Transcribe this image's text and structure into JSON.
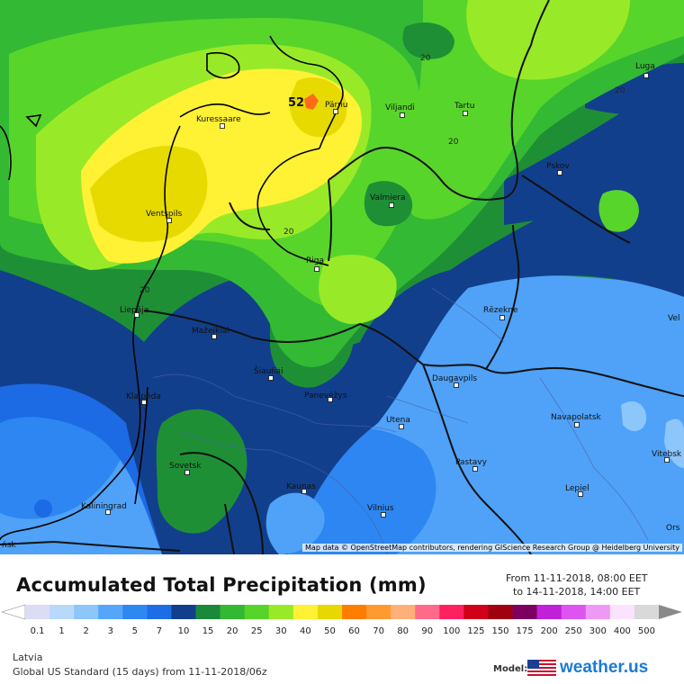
{
  "map": {
    "attribution": "Map data © OpenStreetMap contributors, rendering GIScience Research Group @ Heidelberg University",
    "peak_value": "52",
    "contour_label": "20",
    "cities": [
      {
        "id": "kuressaare",
        "name": "Kuressaare"
      },
      {
        "id": "parnu",
        "name": "Pärnu"
      },
      {
        "id": "viljandi",
        "name": "Viljandi"
      },
      {
        "id": "tartu",
        "name": "Tartu"
      },
      {
        "id": "luga",
        "name": "Luga"
      },
      {
        "id": "pskov",
        "name": "Pskov"
      },
      {
        "id": "valmiera",
        "name": "Valmiera"
      },
      {
        "id": "ventspils",
        "name": "Ventspils"
      },
      {
        "id": "riga",
        "name": "Riga"
      },
      {
        "id": "liepaja",
        "name": "Liepāja"
      },
      {
        "id": "rezekne",
        "name": "Rēzekne"
      },
      {
        "id": "mazeikiai",
        "name": "Mažeikiai"
      },
      {
        "id": "siauliai",
        "name": "Šiauliai"
      },
      {
        "id": "panevezys",
        "name": "Panevėžys"
      },
      {
        "id": "daugavpils",
        "name": "Daugavpils"
      },
      {
        "id": "klaipeda",
        "name": "Klaipėda"
      },
      {
        "id": "utena",
        "name": "Utena"
      },
      {
        "id": "navapolatsk",
        "name": "Navapolatsk"
      },
      {
        "id": "vitebsk",
        "name": "Vitebsk"
      },
      {
        "id": "sovetsk",
        "name": "Sovetsk"
      },
      {
        "id": "pastavy",
        "name": "Pastavy"
      },
      {
        "id": "kaunas",
        "name": "Kaunas"
      },
      {
        "id": "lepiel",
        "name": "Lepiel"
      },
      {
        "id": "kaliningrad",
        "name": "Kaliningrad"
      },
      {
        "id": "vilnius",
        "name": "Vilnius"
      },
      {
        "id": "orsha",
        "name": "Ors"
      },
      {
        "id": "velikie",
        "name": "Vel"
      },
      {
        "id": "west-edge",
        "name": "ńsk"
      }
    ]
  },
  "legend": {
    "title": "Accumulated Total Precipitation (mm)",
    "from": "From 11-11-2018, 08:00 EET",
    "to": "to 14-11-2018, 14:00 EET",
    "ticks": [
      "0.1",
      "1",
      "2",
      "3",
      "5",
      "7",
      "10",
      "15",
      "20",
      "25",
      "30",
      "40",
      "50",
      "60",
      "70",
      "80",
      "90",
      "100",
      "125",
      "150",
      "175",
      "200",
      "250",
      "300",
      "400",
      "500"
    ],
    "colors": [
      "#dcdcf5",
      "#b9d9fb",
      "#8cc6fb",
      "#55a6f9",
      "#2f88f2",
      "#1d6ee6",
      "#123f8c",
      "#1a8a3a",
      "#33b833",
      "#57d42a",
      "#98ea28",
      "#fff134",
      "#e6d800",
      "#ff7d00",
      "#ff9a30",
      "#ffb07a",
      "#ff6a8a",
      "#ff2060",
      "#d00018",
      "#a00010",
      "#7d0060",
      "#c020d8",
      "#dd55ee",
      "#ee99f6",
      "#fbe2fd",
      "#d9d9d9"
    ]
  },
  "footer": {
    "region": "Latvia",
    "model_run": "Global US Standard (15 days) from 11-11-2018/06z",
    "model_label": "Model:",
    "brand": "weather.us"
  }
}
